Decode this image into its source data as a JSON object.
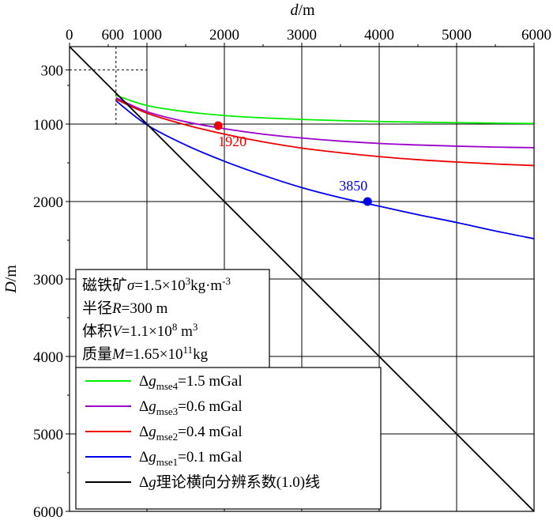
{
  "chart_data": {
    "type": "line",
    "xlabel_var": "d",
    "xlabel_unit": "/m",
    "ylabel_var": "D",
    "ylabel_unit": "/m",
    "xlim": [
      0,
      6000
    ],
    "ylim": [
      0,
      6000
    ],
    "x_ticks": [
      0,
      1000,
      2000,
      3000,
      4000,
      5000,
      6000
    ],
    "x_tick_labels": [
      "0",
      "1000",
      "2000",
      "3000",
      "4000",
      "5000",
      "6000"
    ],
    "x_extra_tick": 600,
    "x_extra_tick_label": "600",
    "y_ticks": [
      300,
      1000,
      2000,
      3000,
      4000,
      5000,
      6000
    ],
    "y_tick_labels": [
      "300",
      "1000",
      "2000",
      "3000",
      "4000",
      "5000",
      "6000"
    ],
    "grid": true,
    "reference_point": {
      "x": 600,
      "y": 300
    },
    "series": [
      {
        "name": "Δg_mse4=1.5 mGal",
        "color": "#00ee00",
        "x": [
          600,
          1000,
          1500,
          2000,
          2500,
          3000,
          3500,
          4000,
          4500,
          5000,
          5500,
          6000
        ],
        "y": [
          630,
          760,
          840,
          890,
          920,
          940,
          955,
          967,
          975,
          982,
          988,
          992
        ]
      },
      {
        "name": "Δg_mse3=0.6 mGal",
        "color": "#9900cc",
        "x": [
          600,
          1000,
          1500,
          2000,
          2500,
          3000,
          3500,
          4000,
          4500,
          5000,
          5500,
          6000
        ],
        "y": [
          660,
          840,
          970,
          1060,
          1130,
          1180,
          1220,
          1250,
          1270,
          1285,
          1297,
          1305
        ]
      },
      {
        "name": "Δg_mse2=0.4 mGal",
        "color": "#ee0000",
        "x": [
          600,
          1000,
          1500,
          2000,
          2500,
          3000,
          3500,
          4000,
          4500,
          5000,
          5500,
          6000
        ],
        "y": [
          680,
          860,
          1010,
          1130,
          1230,
          1310,
          1370,
          1420,
          1460,
          1490,
          1515,
          1535
        ]
      },
      {
        "name": "Δg_mse1=0.1 mGal",
        "color": "#0000ee",
        "x": [
          600,
          1000,
          1500,
          2000,
          2500,
          3000,
          3500,
          4000,
          4500,
          5000,
          5500,
          6000
        ],
        "y": [
          700,
          1010,
          1270,
          1480,
          1660,
          1820,
          1950,
          2060,
          2170,
          2270,
          2380,
          2480
        ]
      },
      {
        "name": "Δg理论横向分辨系数(1.0)线",
        "color": "#000000",
        "x": [
          0,
          6000
        ],
        "y": [
          0,
          6000
        ]
      }
    ],
    "markers": [
      {
        "x": 1920,
        "y": 1020,
        "label": "1920",
        "color": "#ee0000"
      },
      {
        "x": 3850,
        "y": 2000,
        "label": "3850",
        "color": "#0000ee"
      }
    ],
    "info_lines": [
      {
        "pre": "磁铁矿",
        "var": "σ",
        "post": "=1.5×10",
        "sup": "3",
        "post2": "kg·m",
        "sup2": "-3"
      },
      {
        "pre": "半径",
        "var": "R",
        "post": "=300 m",
        "sup": "",
        "post2": "",
        "sup2": ""
      },
      {
        "pre": "体积",
        "var": "V",
        "post": "=1.1×10",
        "sup": "8",
        "post2": " m",
        "sup2": "3"
      },
      {
        "pre": "质量",
        "var": "M",
        "post": "=1.65×10",
        "sup": "11",
        "post2": "kg",
        "sup2": ""
      }
    ],
    "legend": [
      {
        "sym": "Δ",
        "var": "g",
        "sub": "mse4",
        "rest": "=1.5 mGal",
        "color": "#00ee00"
      },
      {
        "sym": "Δ",
        "var": "g",
        "sub": "mse3",
        "rest": "=0.6 mGal",
        "color": "#9900cc"
      },
      {
        "sym": "Δ",
        "var": "g",
        "sub": "mse2",
        "rest": "=0.4 mGal",
        "color": "#ee0000"
      },
      {
        "sym": "Δ",
        "var": "g",
        "sub": "mse1",
        "rest": "=0.1 mGal",
        "color": "#0000ee"
      },
      {
        "sym": "Δ",
        "var": "g",
        "sub": "",
        "rest": "理论横向分辨系数(1.0)线",
        "color": "#000000"
      }
    ]
  }
}
